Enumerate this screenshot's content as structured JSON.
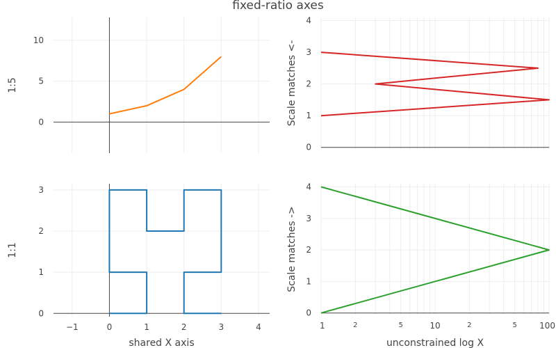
{
  "title": "fixed-ratio axes",
  "chart_data": [
    {
      "id": "top-left",
      "type": "line",
      "xlabel": "",
      "ylabel": "1:5",
      "xlim": [
        -1.5,
        4.3
      ],
      "ylim": [
        -3.8,
        12.8
      ],
      "x_ticks": [
        -1,
        0,
        1,
        2,
        3,
        4
      ],
      "show_x_tick_labels": false,
      "y_ticks": [
        0,
        5,
        10
      ],
      "series": [
        {
          "color": "#ff7f0e",
          "x": [
            0,
            1,
            2,
            3
          ],
          "y": [
            1,
            2,
            4,
            8
          ]
        }
      ]
    },
    {
      "id": "bottom-left",
      "type": "line",
      "xlabel": "shared X axis",
      "ylabel": "1:1",
      "xlim": [
        -1.5,
        4.3
      ],
      "ylim": [
        -0.08,
        3.15
      ],
      "x_ticks": [
        -1,
        0,
        1,
        2,
        3,
        4
      ],
      "x_tick_labels": [
        "−1",
        "0",
        "1",
        "2",
        "3",
        "4"
      ],
      "show_x_tick_labels": true,
      "y_ticks": [
        0,
        1,
        2,
        3
      ],
      "series": [
        {
          "color": "#1f77b4",
          "x": [
            0,
            1,
            1,
            0,
            0,
            1,
            1,
            2,
            2,
            3,
            3,
            2,
            2,
            3
          ],
          "y": [
            0,
            0,
            1,
            1,
            3,
            3,
            2,
            2,
            3,
            3,
            1,
            1,
            0,
            0
          ]
        }
      ]
    },
    {
      "id": "top-right",
      "type": "line",
      "xlabel": "",
      "ylabel": "Scale matches <-",
      "xscale": "log",
      "xlim": [
        1,
        100
      ],
      "ylim": [
        -0.05,
        4.1
      ],
      "y_ticks": [
        0,
        1,
        2,
        3,
        4
      ],
      "show_x_tick_labels": false,
      "series": [
        {
          "color": "#d62728",
          "x": [
            1,
            100,
            3,
            80,
            1
          ],
          "y": [
            1,
            1.5,
            2,
            2.5,
            3
          ]
        }
      ]
    },
    {
      "id": "bottom-right",
      "type": "line",
      "xlabel": "unconstrained log X",
      "ylabel": "Scale matches ->",
      "xscale": "log",
      "xlim": [
        1,
        100
      ],
      "ylim": [
        -0.05,
        4.1
      ],
      "y_ticks": [
        0,
        1,
        2,
        3,
        4
      ],
      "show_x_tick_labels": true,
      "x_major_ticks": [
        1,
        10,
        100
      ],
      "x_minor_ticks": [
        2,
        5,
        20,
        50
      ],
      "series": [
        {
          "color": "#2ca02c",
          "x": [
            1,
            100,
            1
          ],
          "y": [
            0,
            2,
            4
          ]
        }
      ]
    }
  ]
}
